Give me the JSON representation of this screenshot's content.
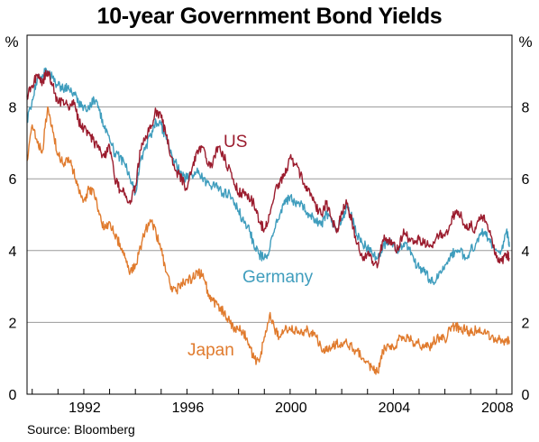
{
  "chart_data": {
    "type": "line",
    "title": "10-year Government Bond Yields",
    "source": "Source: Bloomberg",
    "y_unit": "%",
    "ylim": [
      0,
      10
    ],
    "xlim": [
      1989.8,
      2008.6
    ],
    "y_ticks": [
      0,
      2,
      4,
      6,
      8
    ],
    "x_ticks": [
      1992,
      1996,
      2000,
      2004,
      2008
    ],
    "grid": true,
    "series": [
      {
        "name": "US",
        "color": "#9b1c2e",
        "x": [
          1989.8,
          1990.0,
          1990.2,
          1990.4,
          1990.6,
          1990.8,
          1991.0,
          1991.2,
          1991.4,
          1991.6,
          1991.8,
          1992.0,
          1992.2,
          1992.4,
          1992.6,
          1992.8,
          1993.0,
          1993.2,
          1993.4,
          1993.6,
          1993.8,
          1994.0,
          1994.2,
          1994.4,
          1994.6,
          1994.8,
          1995.0,
          1995.2,
          1995.4,
          1995.6,
          1995.8,
          1996.0,
          1996.2,
          1996.4,
          1996.6,
          1996.8,
          1997.0,
          1997.2,
          1997.4,
          1997.6,
          1997.8,
          1998.0,
          1998.2,
          1998.4,
          1998.6,
          1998.8,
          1999.0,
          1999.2,
          1999.4,
          1999.6,
          1999.8,
          2000.0,
          2000.2,
          2000.4,
          2000.6,
          2000.8,
          2001.0,
          2001.2,
          2001.4,
          2001.6,
          2001.8,
          2002.0,
          2002.2,
          2002.4,
          2002.6,
          2002.8,
          2003.0,
          2003.2,
          2003.4,
          2003.6,
          2003.8,
          2004.0,
          2004.2,
          2004.4,
          2004.6,
          2004.8,
          2005.0,
          2005.2,
          2005.4,
          2005.6,
          2005.8,
          2006.0,
          2006.2,
          2006.4,
          2006.6,
          2006.8,
          2007.0,
          2007.2,
          2007.4,
          2007.6,
          2007.8,
          2008.0,
          2008.2,
          2008.4,
          2008.5
        ],
        "values": [
          8.3,
          8.6,
          8.9,
          8.7,
          9.0,
          8.6,
          8.1,
          8.2,
          8.0,
          8.2,
          7.6,
          7.4,
          7.3,
          7.0,
          6.8,
          6.6,
          6.9,
          6.0,
          5.7,
          5.6,
          5.3,
          5.8,
          6.8,
          7.2,
          7.4,
          7.9,
          7.7,
          7.2,
          6.6,
          6.2,
          6.0,
          5.7,
          6.3,
          6.8,
          6.9,
          6.4,
          6.4,
          6.9,
          6.7,
          6.3,
          6.0,
          5.6,
          5.6,
          5.5,
          5.3,
          4.8,
          4.6,
          5.0,
          5.6,
          5.9,
          6.1,
          6.6,
          6.4,
          6.1,
          5.8,
          5.6,
          5.2,
          5.0,
          5.3,
          4.9,
          4.5,
          5.1,
          5.3,
          4.8,
          4.2,
          3.8,
          3.9,
          3.7,
          3.6,
          4.3,
          4.3,
          4.2,
          4.0,
          4.6,
          4.3,
          4.2,
          4.3,
          4.2,
          4.1,
          4.2,
          4.5,
          4.4,
          4.7,
          5.1,
          5.0,
          4.7,
          4.7,
          4.6,
          5.0,
          4.8,
          4.4,
          3.8,
          3.7,
          3.9,
          3.8
        ]
      },
      {
        "name": "Germany",
        "color": "#3f9dbd",
        "x": [
          1989.8,
          1990.0,
          1990.2,
          1990.4,
          1990.6,
          1990.8,
          1991.0,
          1991.2,
          1991.4,
          1991.6,
          1991.8,
          1992.0,
          1992.2,
          1992.4,
          1992.6,
          1992.8,
          1993.0,
          1993.2,
          1993.4,
          1993.6,
          1993.8,
          1994.0,
          1994.2,
          1994.4,
          1994.6,
          1994.8,
          1995.0,
          1995.2,
          1995.4,
          1995.6,
          1995.8,
          1996.0,
          1996.2,
          1996.4,
          1996.6,
          1996.8,
          1997.0,
          1997.2,
          1997.4,
          1997.6,
          1997.8,
          1998.0,
          1998.2,
          1998.4,
          1998.6,
          1998.8,
          1999.0,
          1999.2,
          1999.4,
          1999.6,
          1999.8,
          2000.0,
          2000.2,
          2000.4,
          2000.6,
          2000.8,
          2001.0,
          2001.2,
          2001.4,
          2001.6,
          2001.8,
          2002.0,
          2002.2,
          2002.4,
          2002.6,
          2002.8,
          2003.0,
          2003.2,
          2003.4,
          2003.6,
          2003.8,
          2004.0,
          2004.2,
          2004.4,
          2004.6,
          2004.8,
          2005.0,
          2005.2,
          2005.4,
          2005.6,
          2005.8,
          2006.0,
          2006.2,
          2006.4,
          2006.6,
          2006.8,
          2007.0,
          2007.2,
          2007.4,
          2007.6,
          2007.8,
          2008.0,
          2008.2,
          2008.4,
          2008.5
        ],
        "values": [
          7.6,
          8.2,
          8.8,
          8.9,
          9.0,
          8.8,
          8.6,
          8.5,
          8.6,
          8.4,
          8.1,
          8.0,
          8.0,
          8.2,
          7.9,
          7.4,
          7.1,
          6.7,
          6.6,
          6.4,
          6.0,
          5.6,
          6.5,
          6.9,
          7.2,
          7.6,
          7.5,
          7.1,
          6.7,
          6.4,
          6.1,
          6.0,
          6.1,
          6.3,
          6.0,
          5.9,
          5.8,
          5.8,
          5.6,
          5.6,
          5.4,
          5.1,
          4.8,
          4.7,
          4.1,
          3.9,
          3.8,
          4.0,
          4.6,
          5.0,
          5.3,
          5.5,
          5.3,
          5.3,
          5.1,
          5.0,
          4.8,
          4.7,
          5.0,
          4.8,
          4.6,
          4.9,
          5.2,
          4.9,
          4.4,
          4.2,
          4.1,
          3.9,
          3.8,
          4.1,
          4.3,
          4.2,
          4.0,
          4.2,
          4.1,
          3.7,
          3.5,
          3.4,
          3.2,
          3.1,
          3.4,
          3.6,
          3.8,
          4.0,
          4.0,
          3.8,
          4.0,
          4.2,
          4.5,
          4.4,
          4.2,
          4.0,
          4.0,
          4.6,
          4.1
        ]
      },
      {
        "name": "Japan",
        "color": "#e07b2e",
        "x": [
          1989.8,
          1990.0,
          1990.2,
          1990.4,
          1990.6,
          1990.8,
          1991.0,
          1991.2,
          1991.4,
          1991.6,
          1991.8,
          1992.0,
          1992.2,
          1992.4,
          1992.6,
          1992.8,
          1993.0,
          1993.2,
          1993.4,
          1993.6,
          1993.8,
          1994.0,
          1994.2,
          1994.4,
          1994.6,
          1994.8,
          1995.0,
          1995.2,
          1995.4,
          1995.6,
          1995.8,
          1996.0,
          1996.2,
          1996.4,
          1996.6,
          1996.8,
          1997.0,
          1997.2,
          1997.4,
          1997.6,
          1997.8,
          1998.0,
          1998.2,
          1998.4,
          1998.6,
          1998.8,
          1999.0,
          1999.2,
          1999.4,
          1999.6,
          1999.8,
          2000.0,
          2000.2,
          2000.4,
          2000.6,
          2000.8,
          2001.0,
          2001.2,
          2001.4,
          2001.6,
          2001.8,
          2002.0,
          2002.2,
          2002.4,
          2002.6,
          2002.8,
          2003.0,
          2003.2,
          2003.4,
          2003.6,
          2003.8,
          2004.0,
          2004.2,
          2004.4,
          2004.6,
          2004.8,
          2005.0,
          2005.2,
          2005.4,
          2005.6,
          2005.8,
          2006.0,
          2006.2,
          2006.4,
          2006.6,
          2006.8,
          2007.0,
          2007.2,
          2007.4,
          2007.6,
          2007.8,
          2008.0,
          2008.2,
          2008.4,
          2008.5
        ],
        "values": [
          6.5,
          7.5,
          7.0,
          6.8,
          8.0,
          7.3,
          6.7,
          6.4,
          6.6,
          6.2,
          5.7,
          5.4,
          5.7,
          5.6,
          5.0,
          4.6,
          4.8,
          4.4,
          4.2,
          3.8,
          3.4,
          3.6,
          4.1,
          4.6,
          4.8,
          4.5,
          4.0,
          3.4,
          3.0,
          2.9,
          3.1,
          3.2,
          3.2,
          3.4,
          3.3,
          2.9,
          2.6,
          2.5,
          2.3,
          2.1,
          1.8,
          1.8,
          1.7,
          1.4,
          1.0,
          0.9,
          1.6,
          2.2,
          1.8,
          1.6,
          1.8,
          1.8,
          1.8,
          1.7,
          1.8,
          1.7,
          1.6,
          1.3,
          1.2,
          1.3,
          1.4,
          1.4,
          1.4,
          1.3,
          1.2,
          1.0,
          0.9,
          0.7,
          0.6,
          1.2,
          1.4,
          1.3,
          1.5,
          1.6,
          1.6,
          1.4,
          1.4,
          1.3,
          1.3,
          1.5,
          1.6,
          1.5,
          1.8,
          1.9,
          1.8,
          1.8,
          1.7,
          1.8,
          1.7,
          1.7,
          1.6,
          1.5,
          1.5,
          1.5,
          1.5
        ]
      }
    ]
  }
}
